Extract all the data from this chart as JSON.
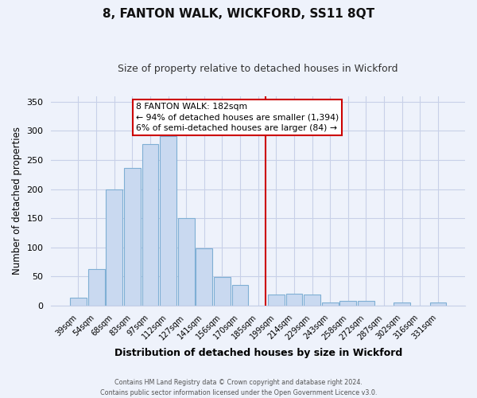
{
  "title": "8, FANTON WALK, WICKFORD, SS11 8QT",
  "subtitle": "Size of property relative to detached houses in Wickford",
  "xlabel": "Distribution of detached houses by size in Wickford",
  "ylabel": "Number of detached properties",
  "bar_labels": [
    "39sqm",
    "54sqm",
    "68sqm",
    "83sqm",
    "97sqm",
    "112sqm",
    "127sqm",
    "141sqm",
    "156sqm",
    "170sqm",
    "185sqm",
    "199sqm",
    "214sqm",
    "229sqm",
    "243sqm",
    "258sqm",
    "272sqm",
    "287sqm",
    "302sqm",
    "316sqm",
    "331sqm"
  ],
  "bar_values": [
    13,
    63,
    200,
    237,
    278,
    291,
    150,
    98,
    49,
    36,
    0,
    19,
    20,
    19,
    5,
    8,
    8,
    0,
    5,
    0,
    5
  ],
  "bar_color": "#c9d9f0",
  "bar_edge_color": "#7fafd4",
  "vline_x": 10.425,
  "vline_color": "#cc0000",
  "annotation_text": "8 FANTON WALK: 182sqm\n← 94% of detached houses are smaller (1,394)\n6% of semi-detached houses are larger (84) →",
  "annotation_box_color": "#ffffff",
  "annotation_box_edge": "#cc0000",
  "ylim": [
    0,
    360
  ],
  "yticks": [
    0,
    50,
    100,
    150,
    200,
    250,
    300,
    350
  ],
  "footer_line1": "Contains HM Land Registry data © Crown copyright and database right 2024.",
  "footer_line2": "Contains public sector information licensed under the Open Government Licence v3.0.",
  "bg_color": "#eef2fb",
  "grid_color": "#c8d0e8"
}
